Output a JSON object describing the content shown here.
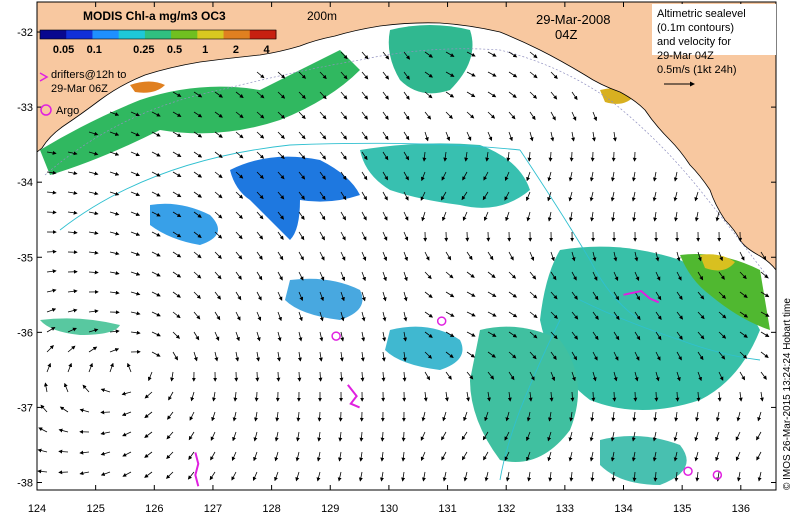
{
  "map": {
    "colorbar_title": "MODIS Chl-a mg/m3 OC3",
    "colorbar_ticks": [
      "0.05",
      "0.1",
      "0.25",
      "0.5",
      "1",
      "2",
      "4"
    ],
    "colorbar_colors": [
      "#08088f",
      "#1030d8",
      "#1e90ff",
      "#1ec8d8",
      "#30c080",
      "#70c020",
      "#d8c820",
      "#e08020",
      "#c82010"
    ],
    "contour_label": "200m",
    "date": "29-Mar-2008",
    "time": "04Z",
    "altimetry_note": [
      "Altimetric sealevel",
      "(0.1m contours)",
      "and velocity for",
      "29-Mar 04Z",
      "0.5m/s (1kt 24h)"
    ],
    "drifters_label": [
      "drifters@12h to",
      "29-Mar 06Z"
    ],
    "argo_label": "Argo",
    "copyright": "© IMOS 26-Mar-2015 13:24:24 Hobart time",
    "lon_ticks": [
      "124",
      "125",
      "126",
      "127",
      "128",
      "129",
      "130",
      "131",
      "132",
      "133",
      "134",
      "135",
      "136"
    ],
    "lat_ticks": [
      "-32",
      "-33",
      "-34",
      "-35",
      "-36",
      "-37",
      "-38"
    ],
    "colors": {
      "land": "#f8c8a0",
      "ocean": "#ffffff",
      "argo": "#e020e0",
      "drifter": "#e020e0",
      "arrow": "#000000",
      "contour": "#30c0d0"
    },
    "argo_floats": [
      {
        "lon": 129.1,
        "lat": -36.05
      },
      {
        "lon": 130.9,
        "lat": -35.85
      },
      {
        "lon": 135.1,
        "lat": -37.85
      },
      {
        "lon": 135.6,
        "lat": -37.9
      }
    ],
    "drifter_tracks": [
      {
        "points": [
          [
            126.7,
            -37.6
          ],
          [
            126.75,
            -37.75
          ],
          [
            126.7,
            -37.9
          ],
          [
            126.75,
            -38.05
          ]
        ]
      },
      {
        "points": [
          [
            129.3,
            -36.7
          ],
          [
            129.45,
            -36.85
          ],
          [
            129.35,
            -36.95
          ],
          [
            129.5,
            -37.0
          ]
        ]
      },
      {
        "points": [
          [
            134.0,
            -35.5
          ],
          [
            134.3,
            -35.45
          ],
          [
            134.45,
            -35.55
          ],
          [
            134.6,
            -35.6
          ]
        ]
      }
    ]
  }
}
